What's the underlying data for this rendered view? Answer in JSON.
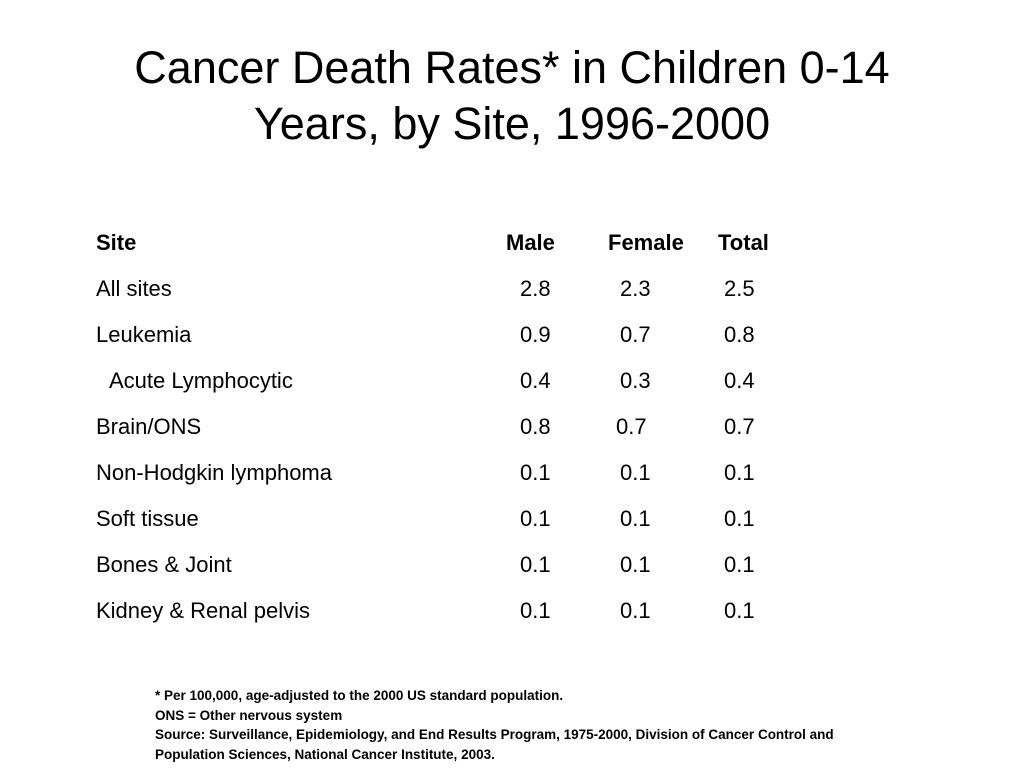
{
  "slide": {
    "title_line1": "Cancer Death Rates* in Children 0-14",
    "title_line2": "Years, by Site, 1996-2000"
  },
  "table": {
    "headers": {
      "site": "Site",
      "male": "Male",
      "female": "Female",
      "total": "Total"
    },
    "rows": [
      {
        "site": "All sites",
        "male": "2.8",
        "female": "2.3",
        "total": "2.5"
      },
      {
        "site": "Leukemia",
        "male": "0.9",
        "female": "0.7",
        "total": "0.8"
      },
      {
        "site": "Acute Lymphocytic",
        "male": "0.4",
        "female": "0.3",
        "total": "0.4"
      },
      {
        "site": "Brain/ONS",
        "male": "0.8",
        "female": "0.7",
        "total": "0.7"
      },
      {
        "site": "Non-Hodgkin lymphoma",
        "male": "0.1",
        "female": "0.1",
        "total": "0.1"
      },
      {
        "site": "Soft tissue",
        "male": "0.1",
        "female": "0.1",
        "total": "0.1"
      },
      {
        "site": "Bones & Joint",
        "male": "0.1",
        "female": "0.1",
        "total": "0.1"
      },
      {
        "site": "Kidney & Renal pelvis",
        "male": "0.1",
        "female": "0.1",
        "total": "0.1"
      }
    ]
  },
  "footnotes": {
    "rate_note": "* Per 100,000, age-adjusted to the 2000 US standard population.",
    "ons_note": "ONS = Other nervous system",
    "source_line1": "Source: Surveillance, Epidemiology, and End Results Program, 1975-2000, Division of Cancer Control and",
    "source_line2": "Population Sciences, National Cancer Institute, 2003."
  }
}
